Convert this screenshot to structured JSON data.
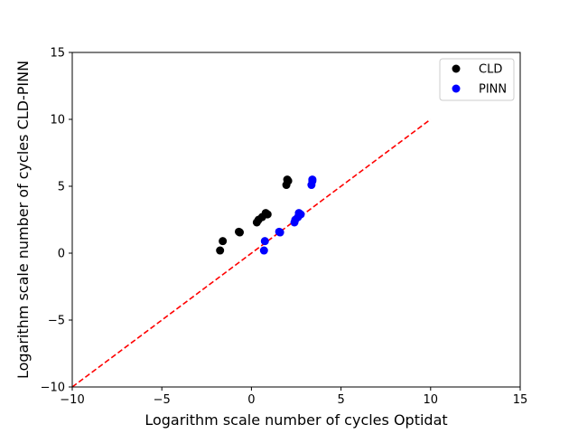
{
  "chart_data": {
    "type": "scatter",
    "title": "",
    "xlabel": "Logarithm scale number of cycles Optidat",
    "ylabel": "Logarithm scale number of cycles CLD-PINN",
    "xlim": [
      -10,
      15
    ],
    "ylim": [
      -10,
      15
    ],
    "xticks": [
      "−10",
      "−5",
      "0",
      "5",
      "10",
      "15"
    ],
    "yticks": [
      "−10",
      "−5",
      "0",
      "5",
      "10",
      "15"
    ],
    "xtick_values": [
      -10,
      -5,
      0,
      5,
      10,
      15
    ],
    "ytick_values": [
      -10,
      -5,
      0,
      5,
      10,
      15
    ],
    "grid": false,
    "legend_position": "top-right",
    "series": [
      {
        "name": "CLD",
        "color": "#000000",
        "points": [
          [
            -1.75,
            0.2
          ],
          [
            -1.6,
            0.9
          ],
          [
            -0.7,
            1.6
          ],
          [
            -0.65,
            1.55
          ],
          [
            0.3,
            2.3
          ],
          [
            0.4,
            2.5
          ],
          [
            0.6,
            2.7
          ],
          [
            0.8,
            3.0
          ],
          [
            0.9,
            2.9
          ],
          [
            1.95,
            5.1
          ],
          [
            2.05,
            5.4
          ],
          [
            2.0,
            5.5
          ]
        ]
      },
      {
        "name": "PINN",
        "color": "#0000ff",
        "points": [
          [
            0.7,
            0.2
          ],
          [
            0.75,
            0.9
          ],
          [
            1.55,
            1.6
          ],
          [
            1.6,
            1.55
          ],
          [
            2.4,
            2.3
          ],
          [
            2.45,
            2.5
          ],
          [
            2.6,
            2.7
          ],
          [
            2.65,
            3.0
          ],
          [
            2.75,
            2.9
          ],
          [
            3.35,
            5.1
          ],
          [
            3.4,
            5.4
          ],
          [
            3.4,
            5.5
          ]
        ]
      }
    ],
    "reference_line": {
      "style": "dashed",
      "color": "#ff0000",
      "x": [
        -10,
        10
      ],
      "y": [
        -10,
        10
      ]
    }
  }
}
